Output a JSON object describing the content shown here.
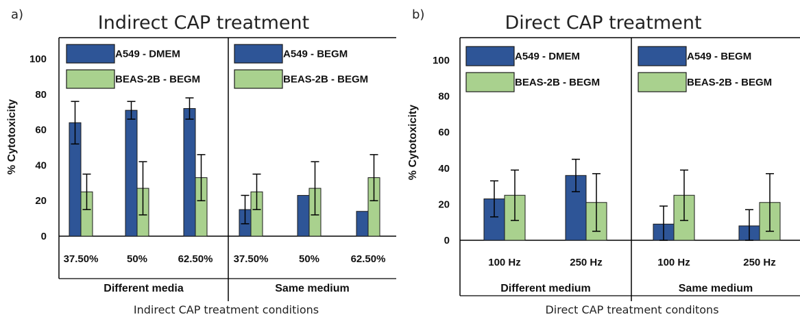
{
  "colors": {
    "blue": "#2E5597",
    "green": "#A9D18E",
    "axis": "#000000",
    "errorbar": "#000000"
  },
  "chart_data": [
    {
      "type": "bar",
      "panel_label": "a)",
      "title": "Indirect CAP treatment",
      "ylabel": "% Cytotoxicity",
      "xlabel": "Indirect CAP treatment conditions",
      "ylim": [
        0,
        100
      ],
      "yticks": [
        0,
        20,
        40,
        60,
        80,
        100
      ],
      "grid": false,
      "legend_placement": "top-left of each section",
      "sections": [
        {
          "name": "Different media",
          "categories": [
            "37.50%",
            "50%",
            "62.50%"
          ],
          "series": [
            {
              "name": "A549 - DMEM",
              "color_key": "blue",
              "values": [
                64,
                71,
                72
              ],
              "errors": [
                12,
                5,
                6
              ]
            },
            {
              "name": "BEAS-2B - BEGM",
              "color_key": "green",
              "values": [
                25,
                27,
                33
              ],
              "errors": [
                10,
                15,
                13
              ]
            }
          ]
        },
        {
          "name": "Same medium",
          "categories": [
            "37.50%",
            "50%",
            "62.50%"
          ],
          "series": [
            {
              "name": "A549 - BEGM",
              "color_key": "blue",
              "values": [
                15,
                23,
                14
              ],
              "errors": [
                8,
                0,
                0
              ]
            },
            {
              "name": "BEAS-2B - BEGM",
              "color_key": "green",
              "values": [
                25,
                27,
                33
              ],
              "errors": [
                10,
                15,
                13
              ]
            }
          ]
        }
      ]
    },
    {
      "type": "bar",
      "panel_label": "b)",
      "title": "Direct CAP treatment",
      "ylabel": "% Cytotoxicity",
      "xlabel": "Direct CAP treatment conditons",
      "ylim": [
        0,
        100
      ],
      "yticks": [
        0,
        20,
        40,
        60,
        80,
        100
      ],
      "grid": false,
      "legend_placement": "top-left of each section",
      "sections": [
        {
          "name": "Different medium",
          "categories": [
            "100 Hz",
            "250 Hz"
          ],
          "series": [
            {
              "name": "A549 - DMEM",
              "color_key": "blue",
              "values": [
                23,
                36
              ],
              "errors": [
                10,
                9
              ]
            },
            {
              "name": "BEAS-2B - BEGM",
              "color_key": "green",
              "values": [
                25,
                21
              ],
              "errors": [
                14,
                16
              ]
            }
          ]
        },
        {
          "name": "Same medium",
          "categories": [
            "100 Hz",
            "250 Hz"
          ],
          "series": [
            {
              "name": "A549 - BEGM",
              "color_key": "blue",
              "values": [
                9,
                8
              ],
              "errors": [
                10,
                9
              ]
            },
            {
              "name": "BEAS-2B - BEGM",
              "color_key": "green",
              "values": [
                25,
                21
              ],
              "errors": [
                14,
                16
              ]
            }
          ]
        }
      ]
    }
  ]
}
